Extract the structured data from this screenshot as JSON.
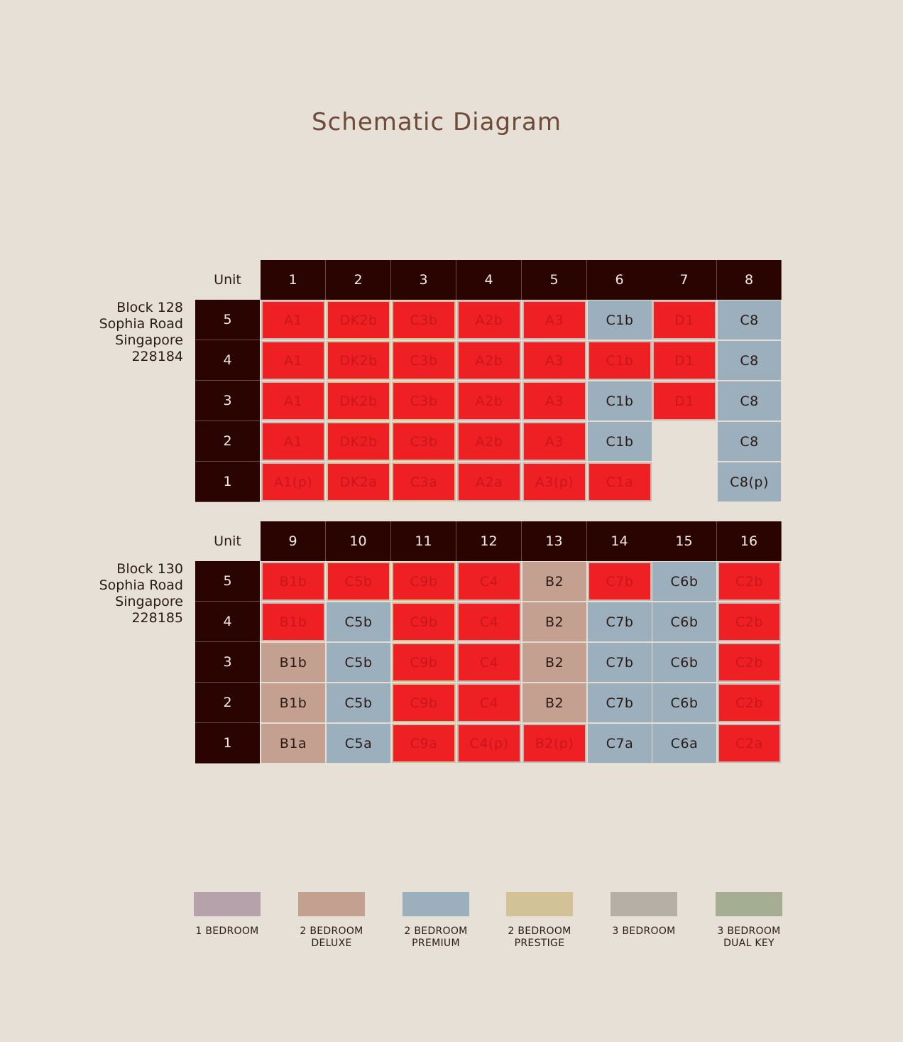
{
  "title": "Schematic Diagram",
  "colors": {
    "bg": "#e7e0d6",
    "header": "#2a0400",
    "sold": "#ee2024",
    "one_bedroom": "#b5a2ab",
    "two_bedroom_deluxe": "#c4a091",
    "two_bedroom_premium": "#9bafbc",
    "two_bedroom_prestige": "#d3c296",
    "three_bedroom": "#b5afa6",
    "three_bedroom_dual_key": "#a5ae92"
  },
  "blocks": [
    {
      "address": [
        "Block 128",
        "Sophia Road",
        "Singapore",
        "228184"
      ],
      "unit_label": "Unit",
      "units": [
        "1",
        "2",
        "3",
        "4",
        "5",
        "6",
        "7",
        "8"
      ],
      "floors": [
        "5",
        "4",
        "3",
        "2",
        "1"
      ],
      "rows": [
        [
          [
            "A1",
            "sold"
          ],
          [
            "DK2b",
            "sold"
          ],
          [
            "C3b",
            "sold"
          ],
          [
            "A2b",
            "sold"
          ],
          [
            "A3",
            "sold"
          ],
          [
            "C1b",
            "premium"
          ],
          [
            "D1",
            "sold"
          ],
          [
            "C8",
            "premium"
          ]
        ],
        [
          [
            "A1",
            "sold"
          ],
          [
            "DK2b",
            "sold"
          ],
          [
            "C3b",
            "sold"
          ],
          [
            "A2b",
            "sold"
          ],
          [
            "A3",
            "sold"
          ],
          [
            "C1b",
            "sold"
          ],
          [
            "D1",
            "sold"
          ],
          [
            "C8",
            "premium"
          ]
        ],
        [
          [
            "A1",
            "sold"
          ],
          [
            "DK2b",
            "sold"
          ],
          [
            "C3b",
            "sold"
          ],
          [
            "A2b",
            "sold"
          ],
          [
            "A3",
            "sold"
          ],
          [
            "C1b",
            "premium"
          ],
          [
            "D1",
            "sold"
          ],
          [
            "C8",
            "premium"
          ]
        ],
        [
          [
            "A1",
            "sold"
          ],
          [
            "DK2b",
            "sold"
          ],
          [
            "C3b",
            "sold"
          ],
          [
            "A2b",
            "sold"
          ],
          [
            "A3",
            "sold"
          ],
          [
            "C1b",
            "premium"
          ],
          [
            "",
            "none"
          ],
          [
            "C8",
            "premium"
          ]
        ],
        [
          [
            "A1(p)",
            "sold"
          ],
          [
            "DK2a",
            "sold"
          ],
          [
            "C3a",
            "sold"
          ],
          [
            "A2a",
            "sold"
          ],
          [
            "A3(p)",
            "sold"
          ],
          [
            "C1a",
            "sold"
          ],
          [
            "",
            "none"
          ],
          [
            "C8(p)",
            "premium"
          ]
        ]
      ]
    },
    {
      "address": [
        "Block 130",
        "Sophia Road",
        "Singapore",
        "228185"
      ],
      "unit_label": "Unit",
      "units": [
        "9",
        "10",
        "11",
        "12",
        "13",
        "14",
        "15",
        "16"
      ],
      "floors": [
        "5",
        "4",
        "3",
        "2",
        "1"
      ],
      "rows": [
        [
          [
            "B1b",
            "sold"
          ],
          [
            "C5b",
            "sold"
          ],
          [
            "C9b",
            "sold"
          ],
          [
            "C4",
            "sold"
          ],
          [
            "B2",
            "deluxe"
          ],
          [
            "C7b",
            "sold"
          ],
          [
            "C6b",
            "premium"
          ],
          [
            "C2b",
            "sold"
          ]
        ],
        [
          [
            "B1b",
            "sold"
          ],
          [
            "C5b",
            "premium"
          ],
          [
            "C9b",
            "sold"
          ],
          [
            "C4",
            "sold"
          ],
          [
            "B2",
            "deluxe"
          ],
          [
            "C7b",
            "premium"
          ],
          [
            "C6b",
            "premium"
          ],
          [
            "C2b",
            "sold"
          ]
        ],
        [
          [
            "B1b",
            "deluxe"
          ],
          [
            "C5b",
            "premium"
          ],
          [
            "C9b",
            "sold"
          ],
          [
            "C4",
            "sold"
          ],
          [
            "B2",
            "deluxe"
          ],
          [
            "C7b",
            "premium"
          ],
          [
            "C6b",
            "premium"
          ],
          [
            "C2b",
            "sold"
          ]
        ],
        [
          [
            "B1b",
            "deluxe"
          ],
          [
            "C5b",
            "premium"
          ],
          [
            "C9b",
            "sold"
          ],
          [
            "C4",
            "sold"
          ],
          [
            "B2",
            "deluxe"
          ],
          [
            "C7b",
            "premium"
          ],
          [
            "C6b",
            "premium"
          ],
          [
            "C2b",
            "sold"
          ]
        ],
        [
          [
            "B1a",
            "deluxe"
          ],
          [
            "C5a",
            "premium"
          ],
          [
            "C9a",
            "sold"
          ],
          [
            "C4(p)",
            "sold"
          ],
          [
            "B2(p)",
            "sold"
          ],
          [
            "C7a",
            "premium"
          ],
          [
            "C6a",
            "premium"
          ],
          [
            "C2a",
            "sold"
          ]
        ]
      ]
    }
  ],
  "legend": [
    {
      "label": [
        "1 BEDROOM"
      ],
      "color": "#b5a2ab"
    },
    {
      "label": [
        "2 BEDROOM",
        "DELUXE"
      ],
      "color": "#c4a091"
    },
    {
      "label": [
        "2 BEDROOM",
        "PREMIUM"
      ],
      "color": "#9bafbc"
    },
    {
      "label": [
        "2 BEDROOM",
        "PRESTIGE"
      ],
      "color": "#d3c296"
    },
    {
      "label": [
        "3 BEDROOM"
      ],
      "color": "#b5afa6"
    },
    {
      "label": [
        "3 BEDROOM",
        "DUAL KEY"
      ],
      "color": "#a5ae92"
    }
  ]
}
